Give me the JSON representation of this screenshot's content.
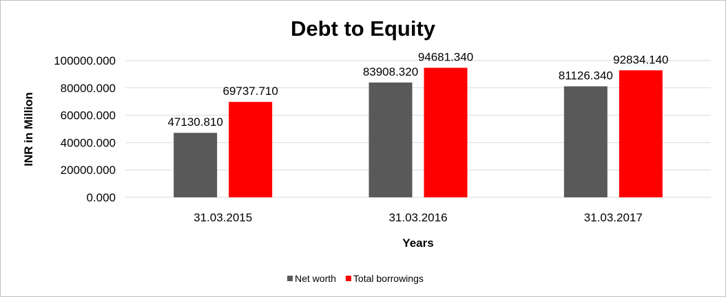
{
  "chart_data": {
    "type": "bar",
    "title": "Debt to Equity",
    "xlabel": "Years",
    "ylabel": "INR in Million",
    "categories": [
      "31.03.2015",
      "31.03.2016",
      "31.03.2017"
    ],
    "series": [
      {
        "name": "Net worth",
        "color": "#595959",
        "values": [
          47130.81,
          83908.32,
          81126.34
        ],
        "labels": [
          "47130.810",
          "83908.320",
          "81126.340"
        ]
      },
      {
        "name": "Total borrowings",
        "color": "#ff0000",
        "values": [
          69737.71,
          94681.34,
          92834.14
        ],
        "labels": [
          "69737.710",
          "94681.340",
          "92834.140"
        ]
      }
    ],
    "ylim": [
      0,
      100000
    ],
    "yticks": [
      0,
      20000,
      40000,
      60000,
      80000,
      100000
    ],
    "ytick_labels": [
      "0.000",
      "20000.000",
      "40000.000",
      "60000.000",
      "80000.000",
      "100000.000"
    ],
    "grid": true,
    "legend_position": "bottom"
  }
}
